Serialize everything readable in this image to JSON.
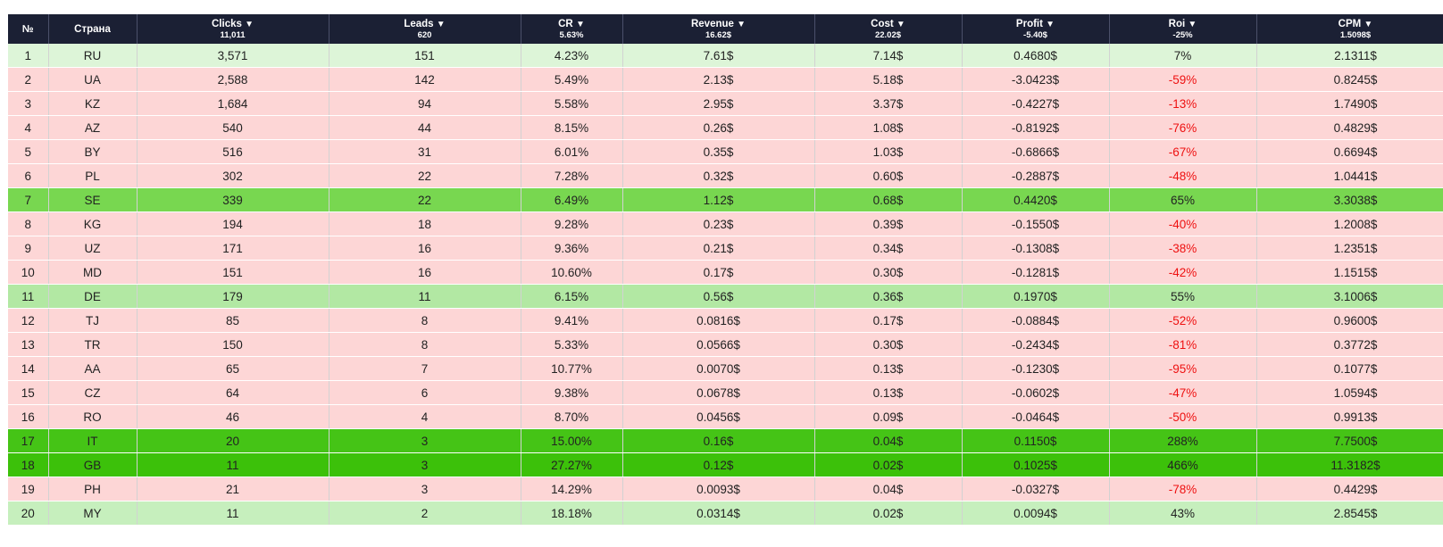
{
  "colors": {
    "header_bg": "#1b2034",
    "negative_row": "#fdd6d6",
    "negative_roi_text": "#ee1111"
  },
  "header": {
    "num": "№",
    "country": "Страна",
    "clicks": {
      "label": "Clicks",
      "icon": "sort-down-icon",
      "total": "11,011"
    },
    "leads": {
      "label": "Leads",
      "icon": "sort-down-icon",
      "total": "620"
    },
    "cr": {
      "label": "CR",
      "icon": "sort-down-icon",
      "total": "5.63%"
    },
    "revenue": {
      "label": "Revenue",
      "icon": "sort-down-icon",
      "total": "16.62$"
    },
    "cost": {
      "label": "Cost",
      "icon": "sort-down-icon",
      "total": "22.02$"
    },
    "profit": {
      "label": "Profit",
      "icon": "sort-down-icon",
      "total": "-5.40$"
    },
    "roi": {
      "label": "Roi",
      "icon": "sort-down-icon",
      "total": "-25%"
    },
    "cpm": {
      "label": "CPM",
      "icon": "sort-down-icon",
      "total": "1.5098$"
    }
  },
  "rows": [
    {
      "num": "1",
      "country": "RU",
      "clicks": "3,571",
      "leads": "151",
      "cr": "4.23%",
      "revenue": "7.61$",
      "cost": "7.14$",
      "profit": "0.4680$",
      "roi": "7%",
      "cpm": "2.1311$"
    },
    {
      "num": "2",
      "country": "UA",
      "clicks": "2,588",
      "leads": "142",
      "cr": "5.49%",
      "revenue": "2.13$",
      "cost": "5.18$",
      "profit": "-3.0423$",
      "roi": "-59%",
      "cpm": "0.8245$"
    },
    {
      "num": "3",
      "country": "KZ",
      "clicks": "1,684",
      "leads": "94",
      "cr": "5.58%",
      "revenue": "2.95$",
      "cost": "3.37$",
      "profit": "-0.4227$",
      "roi": "-13%",
      "cpm": "1.7490$"
    },
    {
      "num": "4",
      "country": "AZ",
      "clicks": "540",
      "leads": "44",
      "cr": "8.15%",
      "revenue": "0.26$",
      "cost": "1.08$",
      "profit": "-0.8192$",
      "roi": "-76%",
      "cpm": "0.4829$"
    },
    {
      "num": "5",
      "country": "BY",
      "clicks": "516",
      "leads": "31",
      "cr": "6.01%",
      "revenue": "0.35$",
      "cost": "1.03$",
      "profit": "-0.6866$",
      "roi": "-67%",
      "cpm": "0.6694$"
    },
    {
      "num": "6",
      "country": "PL",
      "clicks": "302",
      "leads": "22",
      "cr": "7.28%",
      "revenue": "0.32$",
      "cost": "0.60$",
      "profit": "-0.2887$",
      "roi": "-48%",
      "cpm": "1.0441$"
    },
    {
      "num": "7",
      "country": "SE",
      "clicks": "339",
      "leads": "22",
      "cr": "6.49%",
      "revenue": "1.12$",
      "cost": "0.68$",
      "profit": "0.4420$",
      "roi": "65%",
      "cpm": "3.3038$"
    },
    {
      "num": "8",
      "country": "KG",
      "clicks": "194",
      "leads": "18",
      "cr": "9.28%",
      "revenue": "0.23$",
      "cost": "0.39$",
      "profit": "-0.1550$",
      "roi": "-40%",
      "cpm": "1.2008$"
    },
    {
      "num": "9",
      "country": "UZ",
      "clicks": "171",
      "leads": "16",
      "cr": "9.36%",
      "revenue": "0.21$",
      "cost": "0.34$",
      "profit": "-0.1308$",
      "roi": "-38%",
      "cpm": "1.2351$"
    },
    {
      "num": "10",
      "country": "MD",
      "clicks": "151",
      "leads": "16",
      "cr": "10.60%",
      "revenue": "0.17$",
      "cost": "0.30$",
      "profit": "-0.1281$",
      "roi": "-42%",
      "cpm": "1.1515$"
    },
    {
      "num": "11",
      "country": "DE",
      "clicks": "179",
      "leads": "11",
      "cr": "6.15%",
      "revenue": "0.56$",
      "cost": "0.36$",
      "profit": "0.1970$",
      "roi": "55%",
      "cpm": "3.1006$"
    },
    {
      "num": "12",
      "country": "TJ",
      "clicks": "85",
      "leads": "8",
      "cr": "9.41%",
      "revenue": "0.0816$",
      "cost": "0.17$",
      "profit": "-0.0884$",
      "roi": "-52%",
      "cpm": "0.9600$"
    },
    {
      "num": "13",
      "country": "TR",
      "clicks": "150",
      "leads": "8",
      "cr": "5.33%",
      "revenue": "0.0566$",
      "cost": "0.30$",
      "profit": "-0.2434$",
      "roi": "-81%",
      "cpm": "0.3772$"
    },
    {
      "num": "14",
      "country": "AA",
      "clicks": "65",
      "leads": "7",
      "cr": "10.77%",
      "revenue": "0.0070$",
      "cost": "0.13$",
      "profit": "-0.1230$",
      "roi": "-95%",
      "cpm": "0.1077$"
    },
    {
      "num": "15",
      "country": "CZ",
      "clicks": "64",
      "leads": "6",
      "cr": "9.38%",
      "revenue": "0.0678$",
      "cost": "0.13$",
      "profit": "-0.0602$",
      "roi": "-47%",
      "cpm": "1.0594$"
    },
    {
      "num": "16",
      "country": "RO",
      "clicks": "46",
      "leads": "4",
      "cr": "8.70%",
      "revenue": "0.0456$",
      "cost": "0.09$",
      "profit": "-0.0464$",
      "roi": "-50%",
      "cpm": "0.9913$"
    },
    {
      "num": "17",
      "country": "IT",
      "clicks": "20",
      "leads": "3",
      "cr": "15.00%",
      "revenue": "0.16$",
      "cost": "0.04$",
      "profit": "0.1150$",
      "roi": "288%",
      "cpm": "7.7500$"
    },
    {
      "num": "18",
      "country": "GB",
      "clicks": "11",
      "leads": "3",
      "cr": "27.27%",
      "revenue": "0.12$",
      "cost": "0.02$",
      "profit": "0.1025$",
      "roi": "466%",
      "cpm": "11.3182$"
    },
    {
      "num": "19",
      "country": "PH",
      "clicks": "21",
      "leads": "3",
      "cr": "14.29%",
      "revenue": "0.0093$",
      "cost": "0.04$",
      "profit": "-0.0327$",
      "roi": "-78%",
      "cpm": "0.4429$"
    },
    {
      "num": "20",
      "country": "MY",
      "clicks": "11",
      "leads": "2",
      "cr": "18.18%",
      "revenue": "0.0314$",
      "cost": "0.02$",
      "profit": "0.0094$",
      "roi": "43%",
      "cpm": "2.8545$"
    }
  ]
}
